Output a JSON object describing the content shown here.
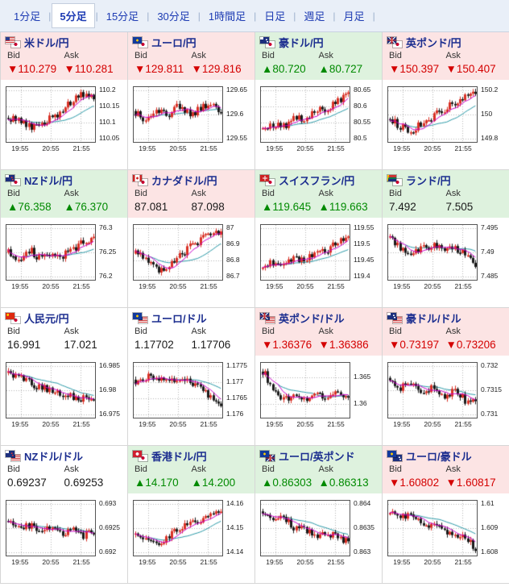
{
  "colors": {
    "accent_blue": "#1d3bb3",
    "down_red": "#d40000",
    "up_green": "#008a00",
    "tint_down": "#fce4e4",
    "tint_up": "#def2de",
    "candle_up": "#d93025",
    "candle_down": "#1a1a1a",
    "ma_line": "#cc00cc",
    "ma_line2": "#2a9aa8",
    "grid_line": "#b5b5b5"
  },
  "labels": {
    "bid": "Bid",
    "ask": "Ask"
  },
  "tabs": {
    "separator": "|",
    "items": [
      {
        "label": "1分足",
        "active": false
      },
      {
        "label": "5分足",
        "active": true
      },
      {
        "label": "15分足",
        "active": false
      },
      {
        "label": "30分足",
        "active": false
      },
      {
        "label": "1時間足",
        "active": false
      },
      {
        "label": "日足",
        "active": false
      },
      {
        "label": "週足",
        "active": false
      },
      {
        "label": "月足",
        "active": false
      }
    ]
  },
  "panels": [
    {
      "name": "米ドル/円",
      "flags": [
        "us",
        "jp"
      ],
      "tint": "down",
      "dir": "down",
      "bid": "▼110.279",
      "ask": "▼110.281",
      "chart": {
        "seed": 1,
        "trend": [
          0.45,
          0.35,
          0.25,
          0.3,
          0.45,
          0.55,
          0.8,
          0.92,
          0.85
        ],
        "y_ticks": [
          "110.2",
          "110.15",
          "110.1",
          "110.05"
        ],
        "x_ticks": [
          "19:55",
          "20:55",
          "21:55"
        ]
      }
    },
    {
      "name": "ユーロ/円",
      "flags": [
        "eu",
        "jp"
      ],
      "tint": "down",
      "dir": "down",
      "bid": "▼129.811",
      "ask": "▼129.816",
      "chart": {
        "seed": 2,
        "trend": [
          0.55,
          0.35,
          0.6,
          0.45,
          0.7,
          0.5,
          0.6,
          0.75,
          0.55
        ],
        "y_ticks": [
          "129.65",
          "129.6",
          "129.55"
        ],
        "x_ticks": [
          "19:55",
          "20:55",
          "21:55"
        ]
      }
    },
    {
      "name": "豪ドル/円",
      "flags": [
        "au",
        "jp"
      ],
      "tint": "up",
      "dir": "up",
      "bid": "▲80.720",
      "ask": "▲80.727",
      "chart": {
        "seed": 3,
        "trend": [
          0.18,
          0.3,
          0.25,
          0.45,
          0.4,
          0.6,
          0.55,
          0.8,
          0.88
        ],
        "y_ticks": [
          "80.65",
          "80.6",
          "80.55",
          "80.5"
        ],
        "x_ticks": [
          "19:55",
          "20:55",
          "21:55"
        ]
      }
    },
    {
      "name": "英ポンド/円",
      "flags": [
        "gb",
        "jp"
      ],
      "tint": "down",
      "dir": "down",
      "bid": "▼150.397",
      "ask": "▼150.407",
      "chart": {
        "seed": 4,
        "trend": [
          0.4,
          0.25,
          0.18,
          0.3,
          0.45,
          0.6,
          0.75,
          0.9,
          0.95
        ],
        "y_ticks": [
          "150.2",
          "150",
          "149.8"
        ],
        "x_ticks": [
          "19:55",
          "20:55",
          "21:55"
        ]
      }
    },
    {
      "name": "NZドル/円",
      "flags": [
        "nz",
        "jp"
      ],
      "tint": "up",
      "dir": "up",
      "bid": "▲76.358",
      "ask": "▲76.370",
      "chart": {
        "seed": 5,
        "trend": [
          0.5,
          0.3,
          0.55,
          0.35,
          0.5,
          0.42,
          0.55,
          0.7,
          0.8
        ],
        "y_ticks": [
          "76.3",
          "76.25",
          "76.2"
        ],
        "x_ticks": [
          "19:55",
          "20:55",
          "21:55"
        ]
      }
    },
    {
      "name": "カナダドル/円",
      "flags": [
        "ca",
        "jp"
      ],
      "tint": "down",
      "dir": "flat",
      "bid": "87.081",
      "ask": "87.098",
      "chart": {
        "seed": 6,
        "trend": [
          0.5,
          0.35,
          0.12,
          0.2,
          0.4,
          0.6,
          0.75,
          0.9,
          0.95
        ],
        "y_ticks": [
          "87",
          "86.9",
          "86.8",
          "86.7"
        ],
        "x_ticks": [
          "19:55",
          "20:55",
          "21:55"
        ]
      }
    },
    {
      "name": "スイスフラン/円",
      "flags": [
        "ch",
        "jp"
      ],
      "tint": "up",
      "dir": "up",
      "bid": "▲119.645",
      "ask": "▲119.663",
      "chart": {
        "seed": 7,
        "trend": [
          0.2,
          0.3,
          0.25,
          0.4,
          0.35,
          0.55,
          0.5,
          0.75,
          0.85
        ],
        "y_ticks": [
          "119.55",
          "119.5",
          "119.45",
          "119.4"
        ],
        "x_ticks": [
          "19:55",
          "20:55",
          "21:55"
        ]
      }
    },
    {
      "name": "ランド/円",
      "flags": [
        "za",
        "jp"
      ],
      "tint": "up",
      "dir": "flat",
      "bid": "7.492",
      "ask": "7.505",
      "chart": {
        "seed": 8,
        "trend": [
          0.85,
          0.55,
          0.45,
          0.6,
          0.65,
          0.55,
          0.6,
          0.5,
          0.15
        ],
        "y_ticks": [
          "7.495",
          "7.49",
          "7.485"
        ],
        "x_ticks": [
          "19:55",
          "20:55",
          "21:55"
        ]
      }
    },
    {
      "name": "人民元/円",
      "flags": [
        "cn",
        "jp"
      ],
      "tint": "flat",
      "dir": "flat",
      "bid": "16.991",
      "ask": "17.021",
      "chart": {
        "seed": 9,
        "trend": [
          0.85,
          0.75,
          0.65,
          0.55,
          0.5,
          0.42,
          0.38,
          0.33,
          0.28
        ],
        "y_ticks": [
          "16.985",
          "16.98",
          "16.975"
        ],
        "x_ticks": [
          "19:55",
          "20:55",
          "21:55"
        ]
      }
    },
    {
      "name": "ユーロ/ドル",
      "flags": [
        "eu",
        "us"
      ],
      "tint": "flat",
      "dir": "flat",
      "bid": "1.17702",
      "ask": "1.17706",
      "chart": {
        "seed": 10,
        "trend": [
          0.7,
          0.78,
          0.72,
          0.75,
          0.68,
          0.72,
          0.55,
          0.35,
          0.15
        ],
        "y_ticks": [
          "1.1775",
          "1.177",
          "1.1765",
          "1.176"
        ],
        "x_ticks": [
          "19:55",
          "20:55",
          "21:55"
        ]
      }
    },
    {
      "name": "英ポンド/ドル",
      "flags": [
        "gb",
        "us"
      ],
      "tint": "down",
      "dir": "down",
      "bid": "▼1.36376",
      "ask": "▼1.36386",
      "chart": {
        "seed": 11,
        "trend": [
          0.9,
          0.55,
          0.3,
          0.42,
          0.3,
          0.45,
          0.35,
          0.42,
          0.3
        ],
        "y_ticks": [
          "1.365",
          "1.36"
        ],
        "x_ticks": [
          "19:55",
          "20:55",
          "21:55"
        ]
      }
    },
    {
      "name": "豪ドル/ドル",
      "flags": [
        "au",
        "us"
      ],
      "tint": "down",
      "dir": "down",
      "bid": "▼0.73197",
      "ask": "▼0.73206",
      "chart": {
        "seed": 12,
        "trend": [
          0.75,
          0.55,
          0.65,
          0.45,
          0.55,
          0.35,
          0.5,
          0.3,
          0.35
        ],
        "y_ticks": [
          "0.732",
          "0.7315",
          "0.731"
        ],
        "x_ticks": [
          "19:55",
          "20:55",
          "21:55"
        ]
      }
    },
    {
      "name": "NZドル/ドル",
      "flags": [
        "nz",
        "us"
      ],
      "tint": "flat",
      "dir": "flat",
      "bid": "0.69237",
      "ask": "0.69253",
      "chart": {
        "seed": 13,
        "trend": [
          0.65,
          0.5,
          0.55,
          0.4,
          0.5,
          0.38,
          0.48,
          0.35,
          0.4
        ],
        "y_ticks": [
          "0.693",
          "0.6925",
          "0.692"
        ],
        "x_ticks": [
          "19:55",
          "20:55",
          "21:55"
        ]
      }
    },
    {
      "name": "香港ドル/円",
      "flags": [
        "hk",
        "jp"
      ],
      "tint": "up",
      "dir": "up",
      "bid": "▲14.170",
      "ask": "▲14.200",
      "chart": {
        "seed": 14,
        "trend": [
          0.35,
          0.25,
          0.18,
          0.3,
          0.5,
          0.65,
          0.6,
          0.8,
          0.85
        ],
        "y_ticks": [
          "14.16",
          "14.15",
          "14.14"
        ],
        "x_ticks": [
          "19:55",
          "20:55",
          "21:55"
        ]
      }
    },
    {
      "name": "ユーロ/英ポンド",
      "flags": [
        "eu",
        "gb"
      ],
      "tint": "up",
      "dir": "up",
      "bid": "▲0.86303",
      "ask": "▲0.86313",
      "chart": {
        "seed": 15,
        "trend": [
          0.85,
          0.65,
          0.7,
          0.5,
          0.45,
          0.35,
          0.42,
          0.3,
          0.25
        ],
        "y_ticks": [
          "0.864",
          "0.8635",
          "0.863"
        ],
        "x_ticks": [
          "19:55",
          "20:55",
          "21:55"
        ]
      }
    },
    {
      "name": "ユーロ/豪ドル",
      "flags": [
        "eu",
        "au"
      ],
      "tint": "down",
      "dir": "down",
      "bid": "▼1.60802",
      "ask": "▼1.60817",
      "chart": {
        "seed": 16,
        "trend": [
          0.8,
          0.72,
          0.75,
          0.6,
          0.55,
          0.45,
          0.35,
          0.3,
          0.1
        ],
        "y_ticks": [
          "1.61",
          "1.609",
          "1.608"
        ],
        "x_ticks": [
          "19:55",
          "20:55",
          "21:55"
        ]
      }
    }
  ]
}
